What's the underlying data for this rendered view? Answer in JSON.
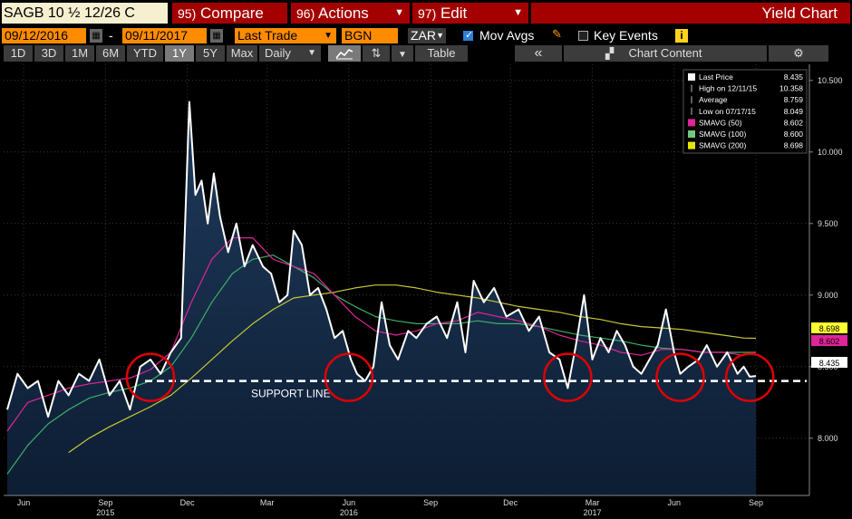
{
  "toolbar": {
    "ticker": "SAGB 10 ½ 12/26 C",
    "compare_num": "95)",
    "compare_label": "Compare",
    "actions_num": "96)",
    "actions_label": "Actions",
    "edit_num": "97)",
    "edit_label": "Edit",
    "title": "Yield Chart"
  },
  "controls": {
    "start_date": "09/12/2016",
    "dash": "-",
    "end_date": "09/11/2017",
    "field": "Last Trade",
    "source": "BGN",
    "currency": "ZAR",
    "mov_avgs_label": "Mov Avgs",
    "key_events_label": "Key Events",
    "info_glyph": "i"
  },
  "periods": {
    "p1d": "1D",
    "p3d": "3D",
    "p1m": "1M",
    "p6m": "6M",
    "pytd": "YTD",
    "p1y": "1Y",
    "p5y": "5Y",
    "pmax": "Max",
    "freq": "Daily",
    "table": "Table",
    "collapse": "«",
    "chart_content": "Chart Content"
  },
  "legend": [
    {
      "label": "Last Price",
      "value": "8.435",
      "swatch": "#ffffff"
    },
    {
      "label": "High on 12/11/15",
      "value": "10.358",
      "swatch": ""
    },
    {
      "label": "Average",
      "value": "8.759",
      "swatch": ""
    },
    {
      "label": "Low on 07/17/15",
      "value": "8.049",
      "swatch": ""
    },
    {
      "label": "SMAVG (50)",
      "value": "8.602",
      "swatch": "#e0249a"
    },
    {
      "label": "SMAVG (100)",
      "value": "8.600",
      "swatch": "#74c77a"
    },
    {
      "label": "SMAVG (200)",
      "value": "8.698",
      "swatch": "#e6e600"
    }
  ],
  "annotation": "SUPPORT LINE",
  "colors": {
    "price": "#ffffff",
    "sma50": "#e0249a",
    "sma100": "#3fae6a",
    "sma200": "#c8c832",
    "area_top": "#1f3b5c",
    "area_bottom": "#0d1d33",
    "circle": "#e00000",
    "bg": "#000000"
  },
  "chart_data": {
    "type": "line",
    "ylim": [
      7.6,
      10.6
    ],
    "y_ticks": [
      "8.000",
      "8.500",
      "9.000",
      "9.500",
      "10.000",
      "10.500"
    ],
    "x_months": [
      "Jun",
      "Sep",
      "Dec",
      "Mar",
      "Jun",
      "Sep",
      "Dec",
      "Mar",
      "Jun",
      "Sep"
    ],
    "x_years": [
      "2015",
      "2016",
      "2017"
    ],
    "support_level": 8.4,
    "last_labels": [
      {
        "text": "8.698",
        "value": 8.698,
        "color": "#ffff33"
      },
      {
        "text": "8.602",
        "value": 8.602,
        "color": "#e0249a"
      },
      {
        "text": "8.435",
        "value": 8.435,
        "color": "#ffffff"
      }
    ],
    "circles_t": [
      7.0,
      16.7,
      27.4,
      32.9,
      36.3
    ],
    "series": [
      {
        "name": "Last Price",
        "key": "price",
        "points": [
          [
            0,
            8.2
          ],
          [
            0.5,
            8.45
          ],
          [
            1,
            8.35
          ],
          [
            1.5,
            8.4
          ],
          [
            2,
            8.15
          ],
          [
            2.5,
            8.4
          ],
          [
            3,
            8.3
          ],
          [
            3.5,
            8.45
          ],
          [
            4,
            8.4
          ],
          [
            4.5,
            8.55
          ],
          [
            5,
            8.3
          ],
          [
            5.5,
            8.4
          ],
          [
            6,
            8.2
          ],
          [
            6.5,
            8.5
          ],
          [
            7,
            8.55
          ],
          [
            7.5,
            8.45
          ],
          [
            8,
            8.6
          ],
          [
            8.5,
            8.7
          ],
          [
            8.9,
            10.35
          ],
          [
            9.2,
            9.7
          ],
          [
            9.5,
            9.8
          ],
          [
            9.8,
            9.5
          ],
          [
            10.1,
            9.85
          ],
          [
            10.4,
            9.55
          ],
          [
            10.8,
            9.3
          ],
          [
            11.2,
            9.5
          ],
          [
            11.6,
            9.2
          ],
          [
            12,
            9.35
          ],
          [
            12.5,
            9.2
          ],
          [
            12.9,
            9.15
          ],
          [
            13.3,
            8.95
          ],
          [
            13.7,
            9.0
          ],
          [
            14,
            9.45
          ],
          [
            14.4,
            9.35
          ],
          [
            14.8,
            9.0
          ],
          [
            15.2,
            9.05
          ],
          [
            15.6,
            8.9
          ],
          [
            16,
            8.7
          ],
          [
            16.4,
            8.75
          ],
          [
            16.8,
            8.55
          ],
          [
            17.1,
            8.45
          ],
          [
            17.5,
            8.4
          ],
          [
            17.9,
            8.5
          ],
          [
            18.3,
            8.95
          ],
          [
            18.7,
            8.65
          ],
          [
            19.1,
            8.55
          ],
          [
            19.6,
            8.75
          ],
          [
            20,
            8.7
          ],
          [
            20.5,
            8.8
          ],
          [
            21,
            8.85
          ],
          [
            21.5,
            8.7
          ],
          [
            22,
            8.95
          ],
          [
            22.4,
            8.6
          ],
          [
            22.8,
            9.1
          ],
          [
            23.3,
            8.95
          ],
          [
            23.8,
            9.05
          ],
          [
            24.4,
            8.85
          ],
          [
            25,
            8.9
          ],
          [
            25.5,
            8.75
          ],
          [
            26,
            8.85
          ],
          [
            26.5,
            8.6
          ],
          [
            27,
            8.55
          ],
          [
            27.4,
            8.35
          ],
          [
            27.8,
            8.65
          ],
          [
            28.2,
            9.0
          ],
          [
            28.6,
            8.55
          ],
          [
            29,
            8.7
          ],
          [
            29.4,
            8.6
          ],
          [
            29.8,
            8.75
          ],
          [
            30.2,
            8.65
          ],
          [
            30.6,
            8.5
          ],
          [
            31,
            8.45
          ],
          [
            31.4,
            8.55
          ],
          [
            31.8,
            8.65
          ],
          [
            32.2,
            8.9
          ],
          [
            32.6,
            8.6
          ],
          [
            32.9,
            8.45
          ],
          [
            33.3,
            8.5
          ],
          [
            33.8,
            8.55
          ],
          [
            34.2,
            8.65
          ],
          [
            34.7,
            8.5
          ],
          [
            35.2,
            8.6
          ],
          [
            35.7,
            8.45
          ],
          [
            36,
            8.5
          ],
          [
            36.3,
            8.43
          ],
          [
            36.6,
            8.435
          ]
        ]
      },
      {
        "name": "SMAVG (50)",
        "key": "sma50",
        "points": [
          [
            0,
            8.05
          ],
          [
            1,
            8.25
          ],
          [
            2,
            8.3
          ],
          [
            3,
            8.35
          ],
          [
            4,
            8.38
          ],
          [
            5,
            8.4
          ],
          [
            6,
            8.42
          ],
          [
            7,
            8.48
          ],
          [
            8,
            8.6
          ],
          [
            9,
            8.95
          ],
          [
            10,
            9.25
          ],
          [
            11,
            9.4
          ],
          [
            12,
            9.4
          ],
          [
            13,
            9.25
          ],
          [
            14,
            9.2
          ],
          [
            15,
            9.15
          ],
          [
            16,
            9.0
          ],
          [
            17,
            8.85
          ],
          [
            18,
            8.75
          ],
          [
            19,
            8.72
          ],
          [
            20,
            8.75
          ],
          [
            21,
            8.8
          ],
          [
            22,
            8.82
          ],
          [
            23,
            8.88
          ],
          [
            24,
            8.85
          ],
          [
            25,
            8.82
          ],
          [
            26,
            8.78
          ],
          [
            27,
            8.72
          ],
          [
            28,
            8.68
          ],
          [
            29,
            8.65
          ],
          [
            30,
            8.6
          ],
          [
            31,
            8.58
          ],
          [
            32,
            8.62
          ],
          [
            33,
            8.62
          ],
          [
            34,
            8.6
          ],
          [
            35,
            8.6
          ],
          [
            36,
            8.58
          ],
          [
            36.6,
            8.6
          ]
        ]
      },
      {
        "name": "SMAVG (100)",
        "key": "sma100",
        "points": [
          [
            0,
            7.75
          ],
          [
            1,
            7.95
          ],
          [
            2,
            8.1
          ],
          [
            3,
            8.2
          ],
          [
            4,
            8.28
          ],
          [
            5,
            8.32
          ],
          [
            6,
            8.35
          ],
          [
            7,
            8.4
          ],
          [
            8,
            8.5
          ],
          [
            9,
            8.7
          ],
          [
            10,
            8.95
          ],
          [
            11,
            9.15
          ],
          [
            12,
            9.25
          ],
          [
            13,
            9.28
          ],
          [
            14,
            9.2
          ],
          [
            15,
            9.12
          ],
          [
            16,
            9.0
          ],
          [
            17,
            8.92
          ],
          [
            18,
            8.85
          ],
          [
            19,
            8.82
          ],
          [
            20,
            8.8
          ],
          [
            21,
            8.8
          ],
          [
            22,
            8.8
          ],
          [
            23,
            8.82
          ],
          [
            24,
            8.8
          ],
          [
            25,
            8.8
          ],
          [
            26,
            8.78
          ],
          [
            27,
            8.75
          ],
          [
            28,
            8.72
          ],
          [
            29,
            8.7
          ],
          [
            30,
            8.68
          ],
          [
            31,
            8.65
          ],
          [
            32,
            8.63
          ],
          [
            33,
            8.62
          ],
          [
            34,
            8.6
          ],
          [
            35,
            8.6
          ],
          [
            36,
            8.6
          ],
          [
            36.6,
            8.6
          ]
        ]
      },
      {
        "name": "SMAVG (200)",
        "key": "sma200",
        "points": [
          [
            3,
            7.9
          ],
          [
            4,
            8.0
          ],
          [
            5,
            8.08
          ],
          [
            6,
            8.15
          ],
          [
            7,
            8.22
          ],
          [
            8,
            8.3
          ],
          [
            9,
            8.42
          ],
          [
            10,
            8.55
          ],
          [
            11,
            8.68
          ],
          [
            12,
            8.8
          ],
          [
            13,
            8.9
          ],
          [
            14,
            8.98
          ],
          [
            15,
            9.0
          ],
          [
            16,
            9.02
          ],
          [
            17,
            9.05
          ],
          [
            18,
            9.07
          ],
          [
            19,
            9.07
          ],
          [
            20,
            9.05
          ],
          [
            21,
            9.02
          ],
          [
            22,
            9.0
          ],
          [
            23,
            8.98
          ],
          [
            24,
            8.95
          ],
          [
            25,
            8.92
          ],
          [
            26,
            8.9
          ],
          [
            27,
            8.88
          ],
          [
            28,
            8.85
          ],
          [
            29,
            8.83
          ],
          [
            30,
            8.8
          ],
          [
            31,
            8.78
          ],
          [
            32,
            8.77
          ],
          [
            33,
            8.76
          ],
          [
            34,
            8.74
          ],
          [
            35,
            8.72
          ],
          [
            36,
            8.7
          ],
          [
            36.6,
            8.698
          ]
        ]
      }
    ]
  }
}
